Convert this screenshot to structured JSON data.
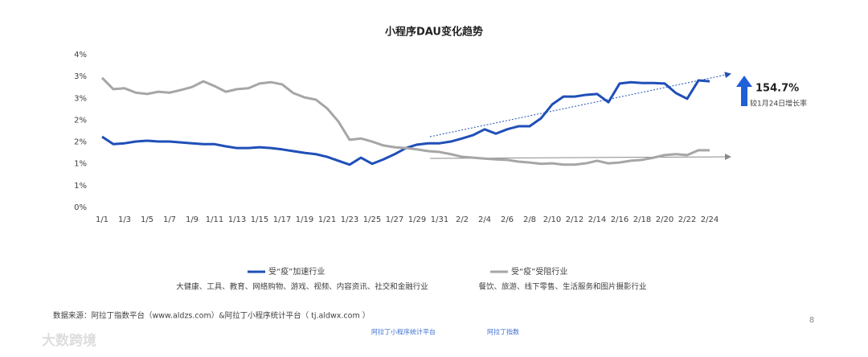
{
  "chart_data": {
    "type": "line",
    "title": "小程序DAU变化趋势",
    "categories": [
      "1/1",
      null,
      "1/3",
      null,
      "1/5",
      null,
      "1/7",
      null,
      "1/9",
      null,
      "1/11",
      null,
      "1/13",
      null,
      "1/15",
      null,
      "1/17",
      null,
      "1/19",
      null,
      "1/21",
      null,
      "1/23",
      null,
      "1/25",
      null,
      "1/27",
      null,
      "1/29",
      null,
      "1/31",
      null,
      "2/2",
      null,
      "2/4",
      null,
      "2/6",
      null,
      "2/8",
      null,
      "2/10",
      null,
      "2/12",
      null,
      "2/14",
      null,
      "2/16",
      null,
      "2/18",
      null,
      "2/20",
      null,
      "2/22",
      null,
      "2/24"
    ],
    "series": [
      {
        "name": "受“疫”加速行业",
        "description": "大健康、工具、教育、网络购物、游戏、视频、内容资讯、社交和金融行业",
        "color": "#1f4fb8",
        "values": [
          1.62,
          1.45,
          1.47,
          1.51,
          1.53,
          1.51,
          1.51,
          1.49,
          1.47,
          1.45,
          1.45,
          1.4,
          1.36,
          1.36,
          1.38,
          1.36,
          1.33,
          1.29,
          1.25,
          1.22,
          1.16,
          1.07,
          0.98,
          1.14,
          1.0,
          1.1,
          1.22,
          1.36,
          1.44,
          1.47,
          1.47,
          1.51,
          1.58,
          1.66,
          1.79,
          1.69,
          1.79,
          1.86,
          1.86,
          2.04,
          2.36,
          2.54,
          2.54,
          2.58,
          2.6,
          2.41,
          2.84,
          2.87,
          2.85,
          2.85,
          2.84,
          2.62,
          2.49,
          2.91,
          2.89
        ]
      },
      {
        "name": "受“疫”受阻行业",
        "description": "餐饮、旅游、线下零售、生活服务和图片摄影行业",
        "color": "#a6a6a6",
        "values": [
          2.97,
          2.71,
          2.73,
          2.63,
          2.6,
          2.65,
          2.63,
          2.69,
          2.76,
          2.89,
          2.78,
          2.65,
          2.71,
          2.73,
          2.84,
          2.87,
          2.82,
          2.62,
          2.52,
          2.47,
          2.27,
          1.97,
          1.55,
          1.58,
          1.51,
          1.42,
          1.38,
          1.36,
          1.33,
          1.29,
          1.27,
          1.22,
          1.16,
          1.14,
          1.12,
          1.1,
          1.09,
          1.05,
          1.03,
          1.0,
          1.01,
          0.98,
          0.98,
          1.01,
          1.07,
          1.01,
          1.03,
          1.07,
          1.09,
          1.14,
          1.2,
          1.22,
          1.2,
          1.31,
          1.31
        ]
      }
    ],
    "ylim": [
      0,
      3.5
    ],
    "yticks": [
      {
        "value": 0,
        "label": "0%"
      },
      {
        "value": 0.5,
        "label": "1%"
      },
      {
        "value": 1,
        "label": "1%"
      },
      {
        "value": 1.5,
        "label": "2%"
      },
      {
        "value": 2,
        "label": "2%"
      },
      {
        "value": 2.5,
        "label": "3%"
      },
      {
        "value": 3,
        "label": "3%"
      },
      {
        "value": 3.5,
        "label": "4%"
      }
    ],
    "grid": false,
    "annotation": "154.7%",
    "annotation_note": "较1月24日增长率"
  },
  "footer": {
    "source": "数据来源：阿拉丁指数平台（www.aldzs.com）&阿拉丁小程序统计平台（ tj.aldwx.com ）",
    "page": "8",
    "logos": [
      "阿拉丁小程序统计平台",
      "阿拉丁指数"
    ],
    "watermark": "大数跨境"
  }
}
